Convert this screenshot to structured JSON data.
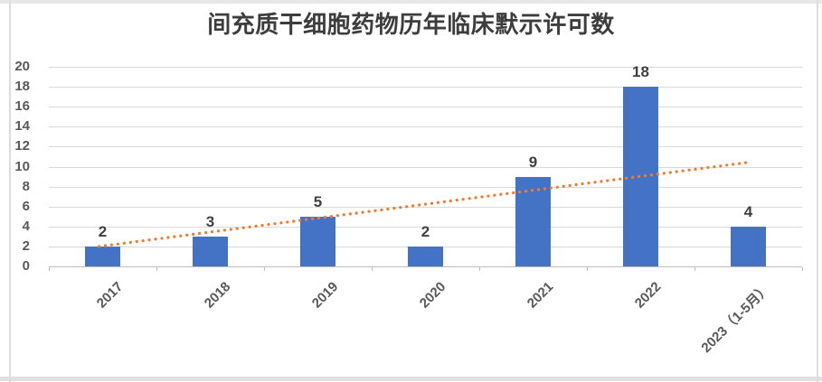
{
  "chart_data": {
    "type": "bar",
    "title": "间充质干细胞药物历年临床默示许可数",
    "categories": [
      "2017",
      "2018",
      "2019",
      "2020",
      "2021",
      "2022",
      "2023（1-5月）"
    ],
    "values": [
      2,
      3,
      5,
      2,
      9,
      18,
      4
    ],
    "data_labels": [
      "2",
      "3",
      "5",
      "2",
      "9",
      "18",
      "4"
    ],
    "xlabel": "",
    "ylabel": "",
    "ylim": [
      0,
      20
    ],
    "yticks": [
      0,
      2,
      4,
      6,
      8,
      10,
      12,
      14,
      16,
      18,
      20
    ],
    "grid": true,
    "legend_position": "none",
    "bar_color": "#4472C4",
    "data_label_color": "#404040",
    "axis_label_color": "#595959",
    "gridline_color": "#D9D9D9",
    "axis_line_color": "#BFBFBF",
    "trendline": {
      "type": "linear",
      "style": "dotted",
      "color": "#ED7D31",
      "start_value": 2.0,
      "end_value": 10.4
    }
  }
}
